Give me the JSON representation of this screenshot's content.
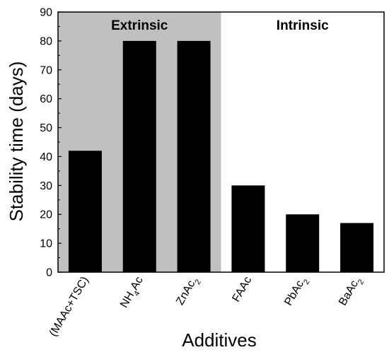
{
  "chart_data": {
    "type": "bar",
    "title": "",
    "xlabel": "Additives",
    "ylabel": "Stability time (days)",
    "ylim": [
      0,
      90
    ],
    "yticks": [
      0,
      10,
      20,
      30,
      40,
      50,
      60,
      70,
      80,
      90
    ],
    "categories": [
      {
        "label": "(MAAc+TSC)",
        "parts": [
          {
            "t": "(MAAc+TSC)"
          }
        ]
      },
      {
        "label": "NH4Ac",
        "parts": [
          {
            "t": "NH"
          },
          {
            "t": "4",
            "sub": true
          },
          {
            "t": "Ac"
          }
        ]
      },
      {
        "label": "ZnAc2",
        "parts": [
          {
            "t": "ZnAc"
          },
          {
            "t": "2",
            "sub": true
          }
        ]
      },
      {
        "label": "FAAc",
        "parts": [
          {
            "t": "FAAc"
          }
        ]
      },
      {
        "label": "PbAc2",
        "parts": [
          {
            "t": "PbAc"
          },
          {
            "t": "2",
            "sub": true
          }
        ]
      },
      {
        "label": "BaAc2",
        "parts": [
          {
            "t": "BaAc"
          },
          {
            "t": "2",
            "sub": true
          }
        ]
      }
    ],
    "values": [
      42,
      80,
      80,
      30,
      20,
      17
    ],
    "bar_color": "#000000",
    "regions": [
      {
        "label": "Extrinsic",
        "from_index": 0,
        "to_index": 2,
        "color": "#c0c0c0"
      },
      {
        "label": "Intrinsic",
        "from_index": 3,
        "to_index": 5,
        "color": "#ffffff"
      }
    ],
    "grid": false
  }
}
